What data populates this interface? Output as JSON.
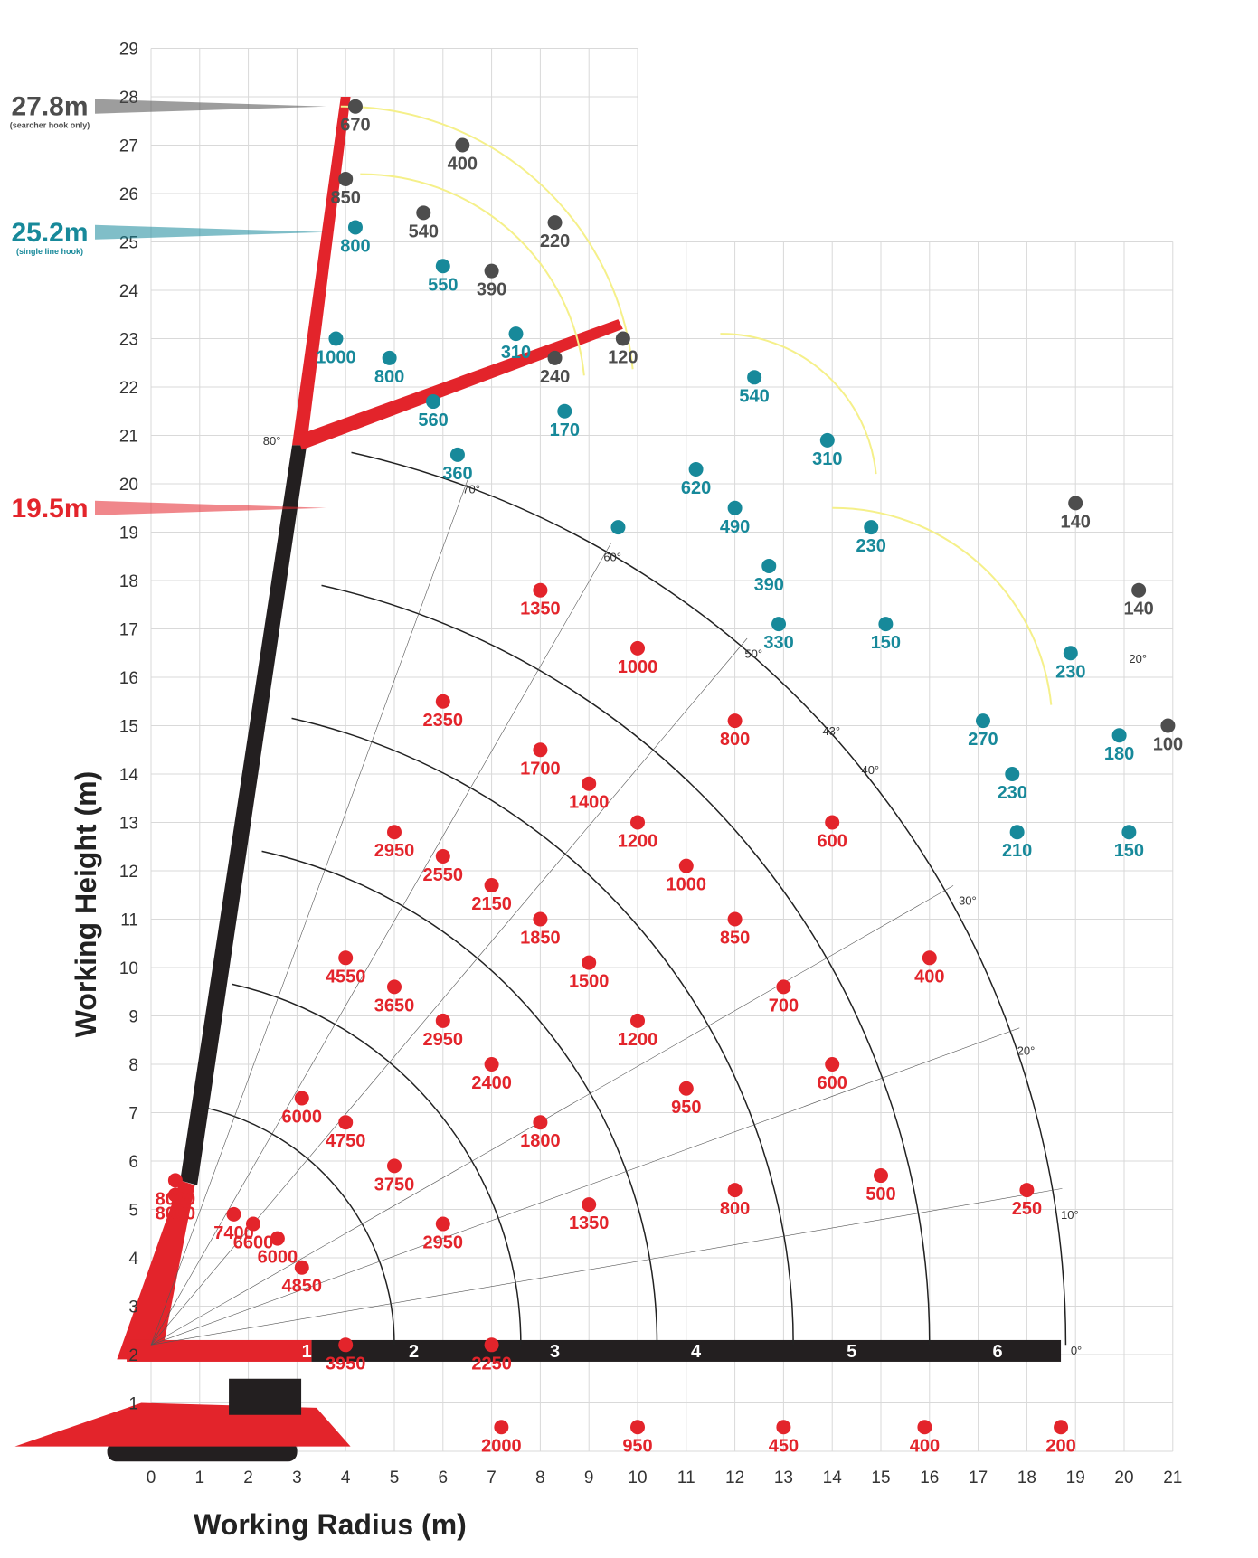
{
  "colors": {
    "main_red": "#e3242b",
    "boom_black": "#231f20",
    "teal": "#17899a",
    "dark_grey": "#4d4d4d",
    "arc_yellow": "#f5f08a",
    "grid": "#d9d9d9"
  },
  "chart_data": {
    "type": "scatter",
    "xlabel": "Working Radius (m)",
    "ylabel": "Working Height (m)",
    "xlim": [
      0,
      21
    ],
    "ylim": [
      0,
      29
    ],
    "x_ticks": [
      "0",
      "1",
      "2",
      "3",
      "4",
      "5",
      "6",
      "7",
      "8",
      "9",
      "10",
      "11",
      "12",
      "13",
      "14",
      "15",
      "16",
      "17",
      "18",
      "19",
      "20",
      "21"
    ],
    "y_ticks": [
      "1",
      "2",
      "3",
      "4",
      "5",
      "6",
      "7",
      "8",
      "9",
      "10",
      "11",
      "12",
      "13",
      "14",
      "15",
      "16",
      "17",
      "18",
      "19",
      "20",
      "21",
      "22",
      "23",
      "24",
      "25",
      "26",
      "27",
      "28",
      "29"
    ],
    "height_callouts": [
      {
        "text": "27.8m",
        "sub": "(searcher hook only)",
        "y": 27.8,
        "color": "#4d4d4d"
      },
      {
        "text": "25.2m",
        "sub": "(single line hook)",
        "y": 25.2,
        "color": "#17899a"
      },
      {
        "text": "19.5m",
        "sub": "",
        "y": 19.5,
        "color": "#e3242b"
      }
    ],
    "boom_sections": [
      "1",
      "2",
      "3",
      "4",
      "5",
      "6"
    ],
    "angle_labels": [
      {
        "text": "80°",
        "x": 2.3,
        "y": 20.8
      },
      {
        "text": "70°",
        "x": 6.4,
        "y": 19.8
      },
      {
        "text": "60°",
        "x": 9.3,
        "y": 18.4
      },
      {
        "text": "50°",
        "x": 12.2,
        "y": 16.4
      },
      {
        "text": "43°",
        "x": 13.8,
        "y": 14.8
      },
      {
        "text": "40°",
        "x": 14.6,
        "y": 14.0
      },
      {
        "text": "30°",
        "x": 16.6,
        "y": 11.3
      },
      {
        "text": "20°",
        "x": 17.8,
        "y": 8.2
      },
      {
        "text": "20°",
        "x": 20.1,
        "y": 16.3
      },
      {
        "text": "10°",
        "x": 18.7,
        "y": 4.8
      },
      {
        "text": "0°",
        "x": 18.9,
        "y": 2.0
      }
    ],
    "series": [
      {
        "name": "",
        "color": "#e3242b",
        "points": [
          {
            "x": 0.5,
            "y": 5.3,
            "label": "8000"
          },
          {
            "x": 0.5,
            "y": 5.6,
            "label": "8000"
          },
          {
            "x": 1.7,
            "y": 4.9,
            "label": "7400"
          },
          {
            "x": 2.1,
            "y": 4.7,
            "label": "6600"
          },
          {
            "x": 2.6,
            "y": 4.4,
            "label": "6000"
          },
          {
            "x": 3.1,
            "y": 3.8,
            "label": "4850"
          },
          {
            "x": 4.0,
            "y": 2.2,
            "label": "3950"
          },
          {
            "x": 3.1,
            "y": 7.3,
            "label": "6000"
          },
          {
            "x": 4.0,
            "y": 6.8,
            "label": "4750"
          },
          {
            "x": 5.0,
            "y": 5.9,
            "label": "3750"
          },
          {
            "x": 6.0,
            "y": 4.7,
            "label": "2950"
          },
          {
            "x": 7.0,
            "y": 2.2,
            "label": "2250"
          },
          {
            "x": 7.2,
            "y": 0.5,
            "label": "2000"
          },
          {
            "x": 4.0,
            "y": 10.2,
            "label": "4550"
          },
          {
            "x": 5.0,
            "y": 9.6,
            "label": "3650"
          },
          {
            "x": 6.0,
            "y": 8.9,
            "label": "2950"
          },
          {
            "x": 7.0,
            "y": 8.0,
            "label": "2400"
          },
          {
            "x": 8.0,
            "y": 6.8,
            "label": "1800"
          },
          {
            "x": 9.0,
            "y": 5.1,
            "label": "1350"
          },
          {
            "x": 10.0,
            "y": 0.5,
            "label": "950"
          },
          {
            "x": 5.0,
            "y": 12.8,
            "label": "2950"
          },
          {
            "x": 6.0,
            "y": 12.3,
            "label": "2550"
          },
          {
            "x": 7.0,
            "y": 11.7,
            "label": "2150"
          },
          {
            "x": 8.0,
            "y": 11.0,
            "label": "1850"
          },
          {
            "x": 9.0,
            "y": 10.1,
            "label": "1500"
          },
          {
            "x": 10.0,
            "y": 8.9,
            "label": "1200"
          },
          {
            "x": 11.0,
            "y": 7.5,
            "label": "950"
          },
          {
            "x": 12.0,
            "y": 5.4,
            "label": "800"
          },
          {
            "x": 13.0,
            "y": 0.5,
            "label": "450"
          },
          {
            "x": 6.0,
            "y": 15.5,
            "label": "2350"
          },
          {
            "x": 8.0,
            "y": 14.5,
            "label": "1700"
          },
          {
            "x": 9.0,
            "y": 13.8,
            "label": "1400"
          },
          {
            "x": 10.0,
            "y": 13.0,
            "label": "1200"
          },
          {
            "x": 11.0,
            "y": 12.1,
            "label": "1000"
          },
          {
            "x": 12.0,
            "y": 11.0,
            "label": "850"
          },
          {
            "x": 13.0,
            "y": 9.6,
            "label": "700"
          },
          {
            "x": 14.0,
            "y": 8.0,
            "label": "600"
          },
          {
            "x": 15.0,
            "y": 5.7,
            "label": "500"
          },
          {
            "x": 15.9,
            "y": 0.5,
            "label": "400"
          },
          {
            "x": 8.0,
            "y": 17.8,
            "label": "1350"
          },
          {
            "x": 10.0,
            "y": 16.6,
            "label": "1000"
          },
          {
            "x": 12.0,
            "y": 15.1,
            "label": "800"
          },
          {
            "x": 14.0,
            "y": 13.0,
            "label": "600"
          },
          {
            "x": 16.0,
            "y": 10.2,
            "label": "400"
          },
          {
            "x": 18.0,
            "y": 5.4,
            "label": "250"
          },
          {
            "x": 18.7,
            "y": 0.5,
            "label": "200"
          }
        ]
      },
      {
        "name": "",
        "color": "#17899a",
        "points": [
          {
            "x": 4.2,
            "y": 25.3,
            "label": "800"
          },
          {
            "x": 3.8,
            "y": 23.0,
            "label": "1000"
          },
          {
            "x": 4.9,
            "y": 22.6,
            "label": "800"
          },
          {
            "x": 6.0,
            "y": 24.5,
            "label": "550"
          },
          {
            "x": 7.5,
            "y": 23.1,
            "label": "310"
          },
          {
            "x": 5.8,
            "y": 21.7,
            "label": "560"
          },
          {
            "x": 6.3,
            "y": 20.6,
            "label": "360"
          },
          {
            "x": 8.5,
            "y": 21.5,
            "label": "170"
          },
          {
            "x": 12.4,
            "y": 22.2,
            "label": "540"
          },
          {
            "x": 13.9,
            "y": 20.9,
            "label": "310"
          },
          {
            "x": 11.2,
            "y": 20.3,
            "label": "620"
          },
          {
            "x": 9.6,
            "y": 19.1,
            "label": "—"
          },
          {
            "x": 12.0,
            "y": 19.5,
            "label": "490"
          },
          {
            "x": 14.8,
            "y": 19.1,
            "label": "230"
          },
          {
            "x": 12.7,
            "y": 18.3,
            "label": "390"
          },
          {
            "x": 12.9,
            "y": 17.1,
            "label": "330"
          },
          {
            "x": 15.1,
            "y": 17.1,
            "label": "150"
          },
          {
            "x": 18.9,
            "y": 16.5,
            "label": "230"
          },
          {
            "x": 17.1,
            "y": 15.1,
            "label": "270"
          },
          {
            "x": 19.9,
            "y": 14.8,
            "label": "180"
          },
          {
            "x": 17.7,
            "y": 14.0,
            "label": "230"
          },
          {
            "x": 17.8,
            "y": 12.8,
            "label": "210"
          },
          {
            "x": 20.1,
            "y": 12.8,
            "label": "150"
          }
        ]
      },
      {
        "name": "",
        "color": "#4d4d4d",
        "points": [
          {
            "x": 4.2,
            "y": 27.8,
            "label": "670"
          },
          {
            "x": 6.4,
            "y": 27.0,
            "label": "400"
          },
          {
            "x": 4.0,
            "y": 26.3,
            "label": "850"
          },
          {
            "x": 5.6,
            "y": 25.6,
            "label": "540"
          },
          {
            "x": 8.3,
            "y": 25.4,
            "label": "220"
          },
          {
            "x": 7.0,
            "y": 24.4,
            "label": "390"
          },
          {
            "x": 9.7,
            "y": 23.0,
            "label": "120"
          },
          {
            "x": 8.3,
            "y": 22.6,
            "label": "240"
          },
          {
            "x": 19.0,
            "y": 19.6,
            "label": "140"
          },
          {
            "x": 20.3,
            "y": 17.8,
            "label": "140"
          },
          {
            "x": 20.9,
            "y": 15.0,
            "label": "100"
          }
        ]
      }
    ]
  }
}
